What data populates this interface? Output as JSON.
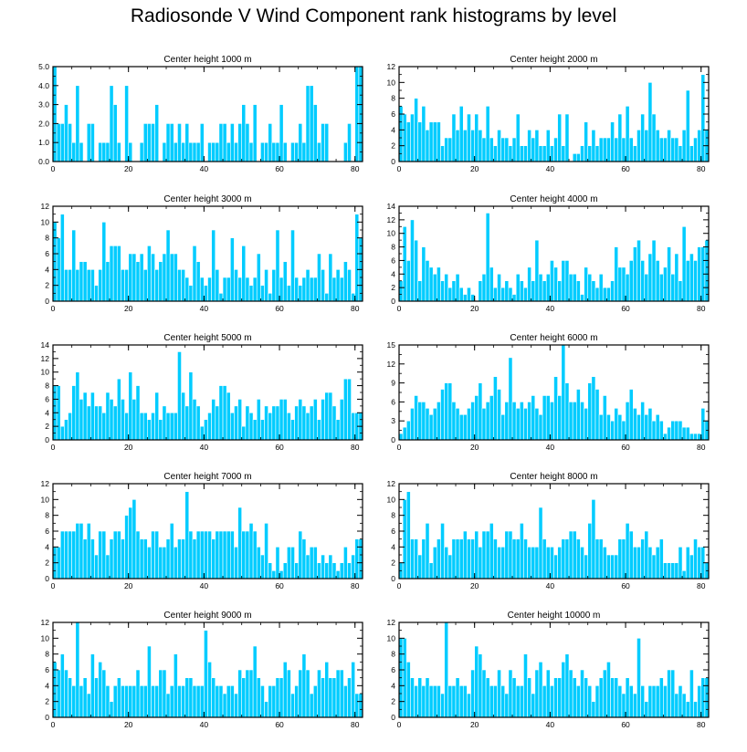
{
  "title": "Radiosonde V Wind Component rank histograms by level",
  "style": {
    "bar_color": "#00ccff",
    "bar_edge": "#ffffff",
    "axis_color": "#000000"
  },
  "chart_data": [
    {
      "type": "bar",
      "title": "Center height 1000 m",
      "xlim": [
        0,
        82
      ],
      "ylim": [
        0,
        5
      ],
      "xticks": [
        0,
        20,
        40,
        60,
        80
      ],
      "xtick_labels": [
        "0",
        "20",
        "40",
        "60",
        "80"
      ],
      "yticks": [
        0,
        1,
        2,
        3,
        4,
        5
      ],
      "ytick_labels": [
        "0.0",
        "1.0",
        "2.0",
        "3.0",
        "4.0",
        "5.0"
      ],
      "values": [
        5,
        2,
        2,
        3,
        2,
        1,
        4,
        1,
        0,
        2,
        2,
        0,
        1,
        1,
        1,
        4,
        3,
        1,
        0,
        4,
        1,
        0,
        0,
        1,
        2,
        2,
        2,
        3,
        0,
        1,
        2,
        2,
        1,
        2,
        1,
        2,
        1,
        1,
        1,
        2,
        0,
        1,
        1,
        1,
        2,
        2,
        1,
        2,
        1,
        2,
        3,
        2,
        1,
        3,
        0,
        1,
        1,
        2,
        1,
        1,
        3,
        1,
        0,
        1,
        1,
        2,
        1,
        4,
        4,
        3,
        1,
        2,
        2,
        0,
        0,
        0,
        0,
        1,
        2,
        0,
        5,
        5,
        0
      ]
    },
    {
      "type": "bar",
      "title": "Center height 2000 m",
      "xlim": [
        0,
        82
      ],
      "ylim": [
        0,
        12
      ],
      "xticks": [
        0,
        20,
        40,
        60,
        80
      ],
      "xtick_labels": [
        "0",
        "20",
        "40",
        "60",
        "80"
      ],
      "yticks": [
        0,
        2,
        4,
        6,
        8,
        10,
        12
      ],
      "ytick_labels": [
        "0",
        "2",
        "4",
        "6",
        "8",
        "10",
        "12"
      ],
      "values": [
        7,
        6,
        5,
        6,
        8,
        5,
        7,
        4,
        5,
        5,
        5,
        2,
        3,
        3,
        6,
        4,
        7,
        4,
        6,
        4,
        6,
        4,
        3,
        7,
        3,
        2,
        4,
        3,
        3,
        2,
        3,
        6,
        2,
        2,
        4,
        3,
        4,
        2,
        2,
        4,
        2,
        3,
        6,
        2,
        6,
        0,
        1,
        1,
        2,
        5,
        2,
        4,
        2,
        3,
        3,
        3,
        5,
        3,
        6,
        3,
        7,
        3,
        2,
        4,
        6,
        4,
        10,
        6,
        4,
        3,
        3,
        4,
        3,
        3,
        2,
        4,
        9,
        2,
        3,
        4,
        11,
        4
      ]
    },
    {
      "type": "bar",
      "title": "Center height 3000 m",
      "xlim": [
        0,
        82
      ],
      "ylim": [
        0,
        12
      ],
      "xticks": [
        0,
        20,
        40,
        60,
        80
      ],
      "xtick_labels": [
        "0",
        "20",
        "40",
        "60",
        "80"
      ],
      "yticks": [
        0,
        2,
        4,
        6,
        8,
        10,
        12
      ],
      "ytick_labels": [
        "0",
        "2",
        "4",
        "6",
        "8",
        "10",
        "12"
      ],
      "values": [
        10,
        8,
        11,
        4,
        4,
        9,
        4,
        5,
        5,
        4,
        4,
        2,
        4,
        10,
        5,
        7,
        7,
        7,
        4,
        4,
        6,
        6,
        5,
        6,
        4,
        7,
        6,
        4,
        5,
        6,
        9,
        6,
        6,
        4,
        4,
        3,
        2,
        7,
        5,
        3,
        2,
        3,
        9,
        4,
        1,
        3,
        3,
        8,
        4,
        3,
        7,
        3,
        2,
        3,
        6,
        2,
        4,
        1,
        4,
        9,
        3,
        5,
        2,
        9,
        3,
        2,
        3,
        4,
        3,
        3,
        6,
        4,
        1,
        6,
        3,
        4,
        3,
        5,
        4,
        1,
        11,
        8
      ]
    },
    {
      "type": "bar",
      "title": "Center height 4000 m",
      "xlim": [
        0,
        82
      ],
      "ylim": [
        0,
        14
      ],
      "xticks": [
        0,
        20,
        40,
        60,
        80
      ],
      "xtick_labels": [
        "0",
        "20",
        "40",
        "60",
        "80"
      ],
      "yticks": [
        0,
        2,
        4,
        6,
        8,
        10,
        12,
        14
      ],
      "ytick_labels": [
        "0",
        "2",
        "4",
        "6",
        "8",
        "10",
        "12",
        "14"
      ],
      "values": [
        3,
        11,
        6,
        12,
        9,
        3,
        8,
        6,
        5,
        4,
        5,
        3,
        4,
        2,
        3,
        4,
        2,
        1,
        2,
        1,
        0,
        3,
        4,
        13,
        5,
        2,
        4,
        2,
        3,
        2,
        1,
        4,
        3,
        2,
        5,
        3,
        9,
        4,
        3,
        4,
        6,
        5,
        3,
        6,
        6,
        4,
        4,
        3,
        1,
        5,
        4,
        3,
        2,
        4,
        2,
        2,
        3,
        8,
        5,
        5,
        4,
        6,
        8,
        9,
        6,
        4,
        7,
        9,
        6,
        4,
        5,
        8,
        4,
        7,
        3,
        11,
        6,
        7,
        6,
        8,
        8,
        9
      ]
    },
    {
      "type": "bar",
      "title": "Center height 5000 m",
      "xlim": [
        0,
        82
      ],
      "ylim": [
        0,
        14
      ],
      "xticks": [
        0,
        20,
        40,
        60,
        80
      ],
      "xtick_labels": [
        "0",
        "20",
        "40",
        "60",
        "80"
      ],
      "yticks": [
        0,
        2,
        4,
        6,
        8,
        10,
        12,
        14
      ],
      "ytick_labels": [
        "0",
        "2",
        "4",
        "6",
        "8",
        "10",
        "12",
        "14"
      ],
      "values": [
        8,
        8,
        2,
        3,
        4,
        8,
        10,
        6,
        7,
        5,
        7,
        5,
        5,
        4,
        7,
        6,
        5,
        9,
        6,
        4,
        10,
        6,
        8,
        4,
        4,
        3,
        4,
        7,
        3,
        5,
        4,
        4,
        4,
        13,
        7,
        5,
        10,
        6,
        5,
        2,
        3,
        4,
        6,
        5,
        8,
        8,
        7,
        4,
        5,
        6,
        2,
        5,
        4,
        3,
        6,
        3,
        5,
        4,
        5,
        5,
        6,
        6,
        4,
        3,
        5,
        6,
        5,
        4,
        5,
        6,
        3,
        6,
        7,
        7,
        5,
        3,
        6,
        9,
        9,
        4,
        4,
        4
      ]
    },
    {
      "type": "bar",
      "title": "Center height 6000 m",
      "xlim": [
        0,
        82
      ],
      "ylim": [
        0,
        15
      ],
      "xticks": [
        0,
        20,
        40,
        60,
        80
      ],
      "xtick_labels": [
        "0",
        "20",
        "40",
        "60",
        "80"
      ],
      "yticks": [
        0,
        3,
        6,
        9,
        12,
        15
      ],
      "ytick_labels": [
        "0",
        "3",
        "6",
        "9",
        "12",
        "15"
      ],
      "values": [
        1,
        2,
        3,
        5,
        7,
        6,
        6,
        5,
        4,
        5,
        6,
        8,
        9,
        9,
        6,
        5,
        4,
        4,
        5,
        6,
        7,
        9,
        5,
        6,
        7,
        10,
        8,
        4,
        6,
        13,
        6,
        5,
        6,
        5,
        6,
        7,
        5,
        4,
        7,
        7,
        6,
        10,
        7,
        15,
        9,
        6,
        6,
        8,
        6,
        5,
        9,
        10,
        8,
        4,
        7,
        4,
        3,
        5,
        4,
        3,
        6,
        8,
        5,
        4,
        6,
        4,
        5,
        3,
        4,
        3,
        1,
        2,
        3,
        3,
        3,
        2,
        2,
        1,
        1,
        1,
        5,
        3
      ]
    },
    {
      "type": "bar",
      "title": "Center height 7000 m",
      "xlim": [
        0,
        82
      ],
      "ylim": [
        0,
        12
      ],
      "xticks": [
        0,
        20,
        40,
        60,
        80
      ],
      "xtick_labels": [
        "0",
        "20",
        "40",
        "60",
        "80"
      ],
      "yticks": [
        0,
        2,
        4,
        6,
        8,
        10,
        12
      ],
      "ytick_labels": [
        "0",
        "2",
        "4",
        "6",
        "8",
        "10",
        "12"
      ],
      "values": [
        4,
        4,
        6,
        6,
        6,
        6,
        7,
        7,
        5,
        7,
        5,
        3,
        6,
        6,
        3,
        5,
        6,
        6,
        5,
        8,
        9,
        10,
        6,
        5,
        5,
        4,
        6,
        6,
        4,
        4,
        5,
        7,
        4,
        5,
        5,
        11,
        6,
        5,
        6,
        6,
        6,
        6,
        5,
        6,
        6,
        6,
        6,
        6,
        4,
        9,
        6,
        6,
        7,
        6,
        4,
        3,
        7,
        2,
        1,
        4,
        1,
        2,
        4,
        4,
        2,
        6,
        5,
        3,
        4,
        4,
        2,
        3,
        2,
        3,
        2,
        1,
        2,
        4,
        2,
        3,
        5,
        5
      ]
    },
    {
      "type": "bar",
      "title": "Center height 8000 m",
      "xlim": [
        0,
        82
      ],
      "ylim": [
        0,
        12
      ],
      "xticks": [
        0,
        20,
        40,
        60,
        80
      ],
      "xtick_labels": [
        "0",
        "20",
        "40",
        "60",
        "80"
      ],
      "yticks": [
        0,
        2,
        4,
        6,
        8,
        10,
        12
      ],
      "ytick_labels": [
        "0",
        "2",
        "4",
        "6",
        "8",
        "10",
        "12"
      ],
      "values": [
        2,
        10,
        11,
        5,
        5,
        3,
        5,
        7,
        2,
        4,
        5,
        7,
        4,
        3,
        5,
        5,
        5,
        6,
        5,
        5,
        6,
        4,
        6,
        6,
        7,
        5,
        4,
        4,
        6,
        6,
        5,
        5,
        7,
        5,
        4,
        4,
        4,
        9,
        5,
        4,
        4,
        3,
        4,
        5,
        5,
        6,
        6,
        5,
        4,
        3,
        7,
        10,
        5,
        5,
        4,
        3,
        3,
        3,
        5,
        5,
        7,
        6,
        4,
        4,
        5,
        6,
        4,
        3,
        4,
        5,
        2,
        2,
        2,
        2,
        4,
        1,
        4,
        3,
        5,
        4,
        4,
        2
      ]
    },
    {
      "type": "bar",
      "title": "Center height 9000 m",
      "xlim": [
        0,
        82
      ],
      "ylim": [
        0,
        12
      ],
      "xticks": [
        0,
        20,
        40,
        60,
        80
      ],
      "xtick_labels": [
        "0",
        "20",
        "40",
        "60",
        "80"
      ],
      "yticks": [
        0,
        2,
        4,
        6,
        8,
        10,
        12
      ],
      "ytick_labels": [
        "0",
        "2",
        "4",
        "6",
        "8",
        "10",
        "12"
      ],
      "values": [
        7,
        6,
        8,
        6,
        5,
        4,
        12,
        4,
        5,
        3,
        8,
        5,
        7,
        6,
        4,
        2,
        4,
        5,
        4,
        4,
        4,
        4,
        6,
        4,
        4,
        9,
        4,
        4,
        6,
        6,
        3,
        4,
        8,
        4,
        4,
        5,
        5,
        4,
        4,
        4,
        11,
        7,
        5,
        4,
        4,
        3,
        4,
        4,
        3,
        6,
        5,
        6,
        6,
        9,
        5,
        4,
        2,
        4,
        4,
        5,
        5,
        7,
        6,
        3,
        4,
        6,
        8,
        6,
        3,
        4,
        6,
        5,
        7,
        5,
        5,
        6,
        6,
        4,
        5,
        7,
        3,
        3
      ]
    },
    {
      "type": "bar",
      "title": "Center height 10000 m",
      "xlim": [
        0,
        82
      ],
      "ylim": [
        0,
        12
      ],
      "xticks": [
        0,
        20,
        40,
        60,
        80
      ],
      "xtick_labels": [
        "0",
        "20",
        "40",
        "60",
        "80"
      ],
      "yticks": [
        0,
        2,
        4,
        6,
        8,
        10,
        12
      ],
      "ytick_labels": [
        "0",
        "2",
        "4",
        "6",
        "8",
        "10",
        "12"
      ],
      "values": [
        10,
        10,
        7,
        5,
        4,
        5,
        4,
        5,
        4,
        4,
        4,
        3,
        12,
        4,
        4,
        5,
        4,
        4,
        3,
        6,
        9,
        8,
        6,
        5,
        4,
        4,
        6,
        4,
        3,
        6,
        5,
        4,
        4,
        8,
        5,
        3,
        6,
        7,
        4,
        6,
        4,
        5,
        5,
        7,
        8,
        6,
        5,
        4,
        6,
        5,
        4,
        2,
        4,
        5,
        6,
        7,
        5,
        5,
        4,
        3,
        5,
        4,
        3,
        10,
        4,
        2,
        4,
        4,
        4,
        5,
        4,
        6,
        6,
        3,
        4,
        3,
        2,
        6,
        2,
        4,
        5,
        5
      ]
    }
  ]
}
